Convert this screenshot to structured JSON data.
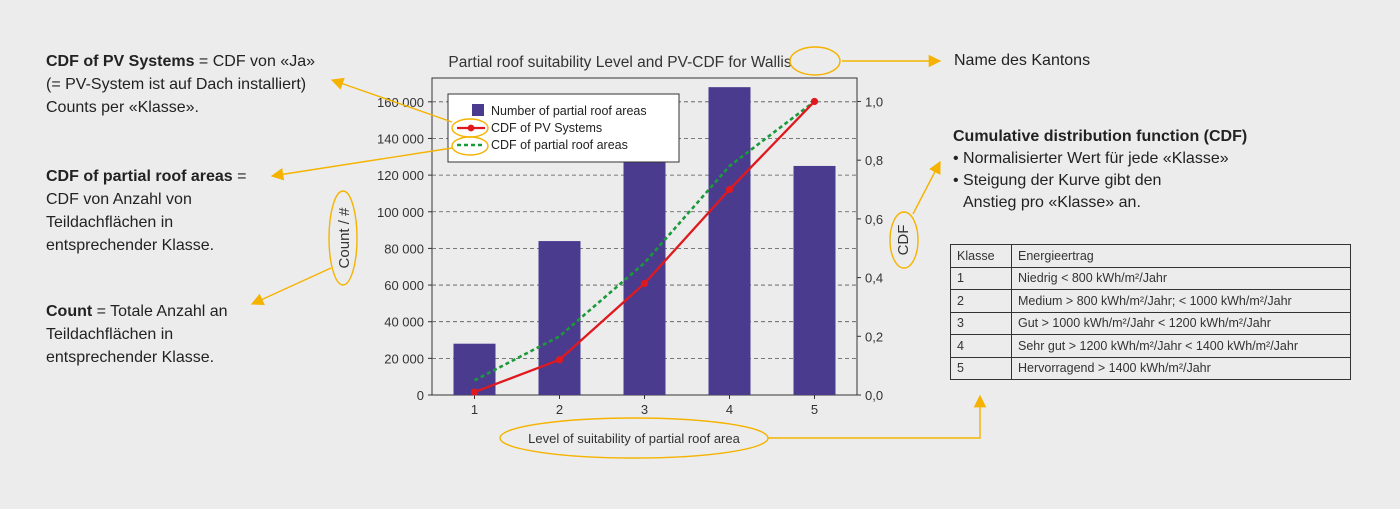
{
  "annotations": {
    "cdf_pv": {
      "title": "CDF of PV Systems",
      "text1": " = CDF von «Ja»",
      "text2": "(= PV-System ist auf Dach installiert)",
      "text3": "Counts per «Klasse»."
    },
    "cdf_roof": {
      "title": "CDF of partial roof areas",
      "text1": " =",
      "text2": "CDF von Anzahl von",
      "text3": "Teildachflächen in",
      "text4": "entsprechender Klasse."
    },
    "count": {
      "title": "Count",
      "text1": " = Totale Anzahl an",
      "text2": "Teildachflächen in",
      "text3": "entsprechender Klasse."
    },
    "canton": "Name des Kantons",
    "cdf_def": {
      "title": "Cumulative distribution function (CDF)",
      "bullet1": "• Normalisierter Wert für jede «Klasse»",
      "bullet2": "• Steigung der Kurve gibt den",
      "bullet3": "Anstieg pro «Klasse» an."
    }
  },
  "table": {
    "headers": [
      "Klasse",
      "Energieertrag"
    ],
    "rows": [
      [
        "1",
        "Niedrig < 800 kWh/m²/Jahr"
      ],
      [
        "2",
        "Medium > 800 kWh/m²/Jahr; < 1000 kWh/m²/Jahr"
      ],
      [
        "3",
        "Gut > 1000 kWh/m²/Jahr < 1200 kWh/m²/Jahr"
      ],
      [
        "4",
        "Sehr gut > 1200 kWh/m²/Jahr < 1400 kWh/m²/Jahr"
      ],
      [
        "5",
        "Hervorragend > 1400 kWh/m²/Jahr"
      ]
    ]
  },
  "colors": {
    "bar": "#4a3b8f",
    "pv_line": "#e0191f",
    "roof_line": "#1a9a3a",
    "highlight": "#f5b300"
  },
  "chart_data": {
    "type": "bar",
    "title_prefix": "Partial roof suitability Level and PV-CDF for ",
    "title_canton": "Wallis",
    "xlabel": "Level of suitability of partial roof area",
    "ylabel": "Count / #",
    "y2label": "CDF",
    "categories": [
      "1",
      "2",
      "3",
      "4",
      "5"
    ],
    "ylim": [
      0,
      170000
    ],
    "y2lim": [
      0,
      1.05
    ],
    "yticks": [
      0,
      20000,
      40000,
      60000,
      80000,
      100000,
      120000,
      140000,
      160000
    ],
    "ytick_labels": [
      "0",
      "20 000",
      "40 000",
      "60 000",
      "80 000",
      "100 000",
      "120 000",
      "140 000",
      "160 000"
    ],
    "y2ticks": [
      0,
      0.2,
      0.4,
      0.6,
      0.8,
      1.0
    ],
    "y2tick_labels": [
      "0,0",
      "0,2",
      "0,4",
      "0,6",
      "0,8",
      "1,0"
    ],
    "grid": true,
    "legend_position": "top-left",
    "series": [
      {
        "name": "Number of partial roof areas",
        "type": "bar",
        "axis": "left",
        "values": [
          28000,
          84000,
          130000,
          168000,
          125000
        ]
      },
      {
        "name": "CDF of PV Systems",
        "type": "line",
        "axis": "right",
        "values": [
          0.01,
          0.12,
          0.38,
          0.7,
          1.0
        ]
      },
      {
        "name": "CDF of partial roof areas",
        "type": "line",
        "axis": "right",
        "values": [
          0.05,
          0.2,
          0.45,
          0.78,
          1.0
        ]
      }
    ]
  }
}
